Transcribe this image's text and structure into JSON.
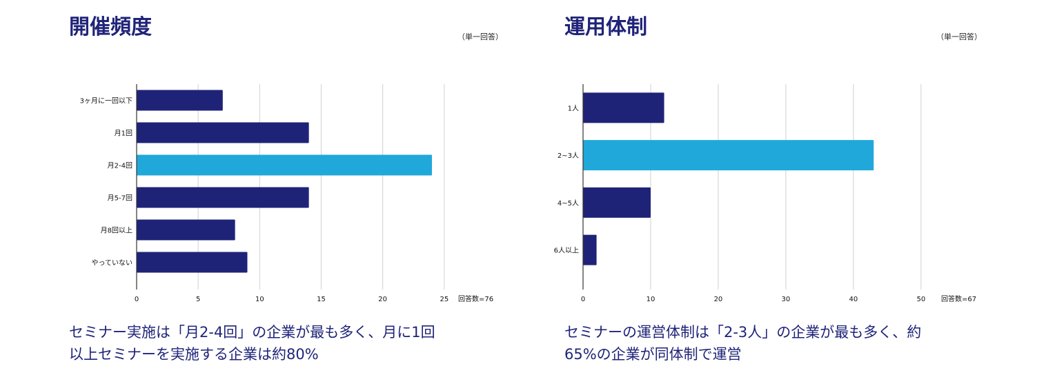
{
  "panels": [
    {
      "title": "開催頻度",
      "unit_note": "（単一回答）",
      "caption_lines": [
        "セミナー実施は「月2-4回」の企業が最も多く、月に1回",
        "以上セミナーを実施する企業は約80%"
      ],
      "chart_data": {
        "type": "bar",
        "orientation": "horizontal",
        "categories": [
          "3ヶ月に一回以下",
          "月1回",
          "月2-4回",
          "月5-7回",
          "月8回以上",
          "やっていない"
        ],
        "values": [
          7,
          14,
          24,
          14,
          8,
          9
        ],
        "highlight_index": 2,
        "xlim": [
          0,
          30
        ],
        "xticks": [
          0,
          5,
          10,
          15,
          20,
          25
        ],
        "xtick_labels": [
          "0",
          "5",
          "10",
          "15",
          "20",
          "25"
        ],
        "grid": true,
        "note": "回答数=76"
      }
    },
    {
      "title": "運用体制",
      "unit_note": "（単一回答）",
      "caption_lines": [
        "セミナーの運営体制は「2-3人」の企業が最も多く、約",
        "65%の企業が同体制で運営"
      ],
      "chart_data": {
        "type": "bar",
        "orientation": "horizontal",
        "categories": [
          "1人",
          "2~3人",
          "4~5人",
          "6人以上"
        ],
        "values": [
          12,
          43,
          10,
          2
        ],
        "highlight_index": 1,
        "xlim": [
          0,
          59
        ],
        "xticks": [
          0,
          10,
          20,
          30,
          40,
          50
        ],
        "xtick_labels": [
          "0",
          "10",
          "20",
          "30",
          "40",
          "50"
        ],
        "grid": true,
        "note": "回答数=67"
      }
    }
  ],
  "colors": {
    "primary": "#1f2378",
    "highlight": "#21a8da",
    "grid": "#d0d0d0",
    "axis": "#333333"
  }
}
